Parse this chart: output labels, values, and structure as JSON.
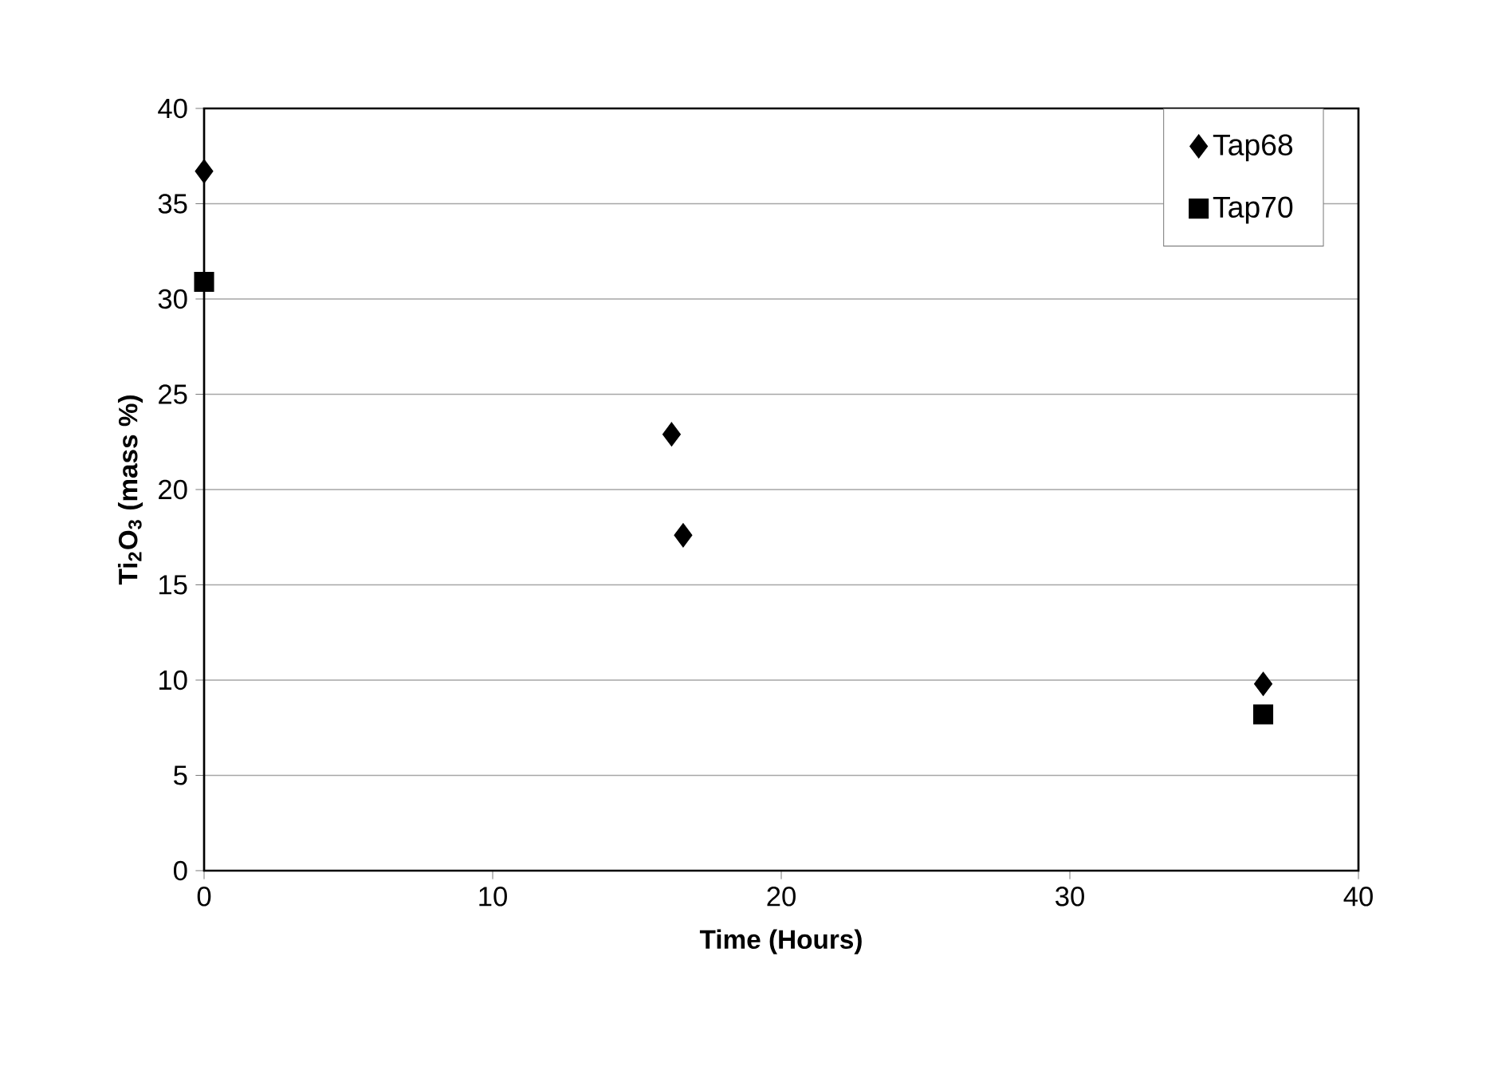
{
  "chart_data": {
    "type": "scatter",
    "xlabel": "Time (Hours)",
    "ylabel": "Ti$_{2}$O$_{3}$ (mass %)",
    "xlim": [
      0,
      40
    ],
    "ylim": [
      0,
      40
    ],
    "xticks": [
      0,
      10,
      20,
      30,
      40
    ],
    "yticks": [
      0,
      5,
      10,
      15,
      20,
      25,
      30,
      35,
      40
    ],
    "grid": "y",
    "legend": "top right",
    "series": [
      {
        "name": "Tap68",
        "color": "#000000",
        "marker": "diamond",
        "x": [
          0,
          16.2,
          16.6,
          36.7
        ],
        "values": [
          36.7,
          22.9,
          17.6,
          9.8
        ]
      },
      {
        "name": "Tap70",
        "color": "#000000",
        "marker": "square",
        "x": [
          0,
          36.7
        ],
        "values": [
          30.9,
          8.2
        ]
      }
    ]
  }
}
